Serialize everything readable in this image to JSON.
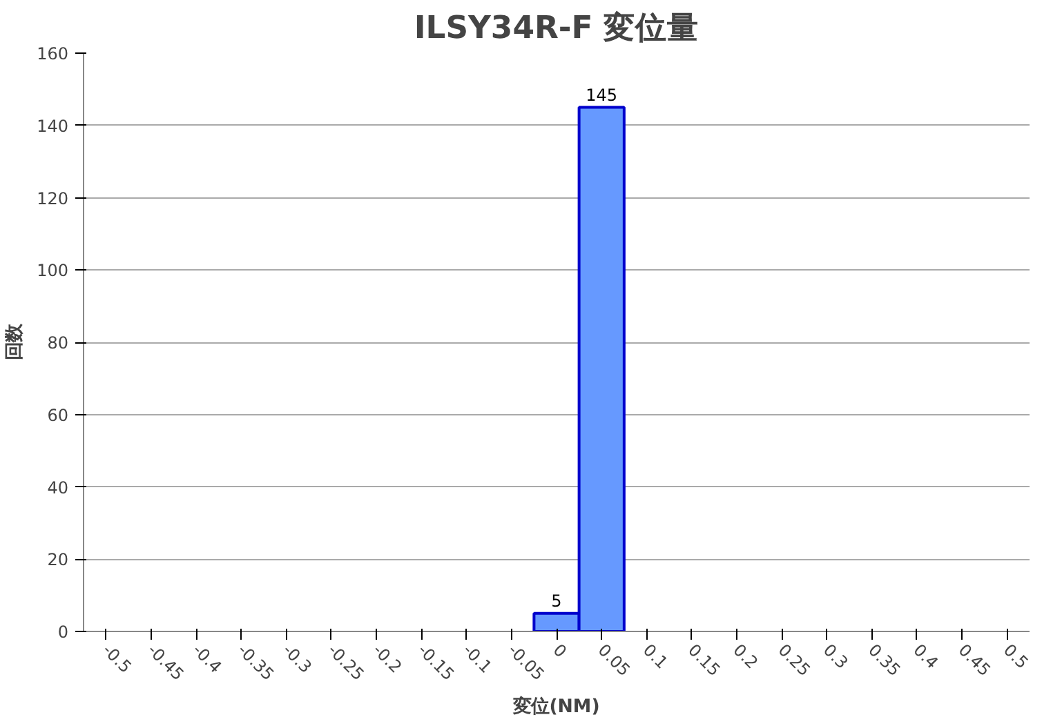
{
  "chart_data": {
    "type": "bar",
    "title": "ILSY34R-F 変位量",
    "xlabel": "変位(NM)",
    "ylabel": "回数",
    "categories": [
      "-0.5",
      "-0.45",
      "-0.4",
      "-0.35",
      "-0.3",
      "-0.25",
      "-0.2",
      "-0.15",
      "-0.1",
      "-0.05",
      "0",
      "0.05",
      "0.1",
      "0.15",
      "0.2",
      "0.25",
      "0.3",
      "0.35",
      "0.4",
      "0.45",
      "0.5"
    ],
    "values": [
      0,
      0,
      0,
      0,
      0,
      0,
      0,
      0,
      0,
      0,
      5,
      145,
      0,
      0,
      0,
      0,
      0,
      0,
      0,
      0,
      0
    ],
    "value_labels": [
      null,
      null,
      null,
      null,
      null,
      null,
      null,
      null,
      null,
      null,
      "5",
      "145",
      null,
      null,
      null,
      null,
      null,
      null,
      null,
      null,
      null
    ],
    "color": "#6699ff",
    "ylim": [
      0,
      160
    ],
    "yticks": [
      0,
      20,
      40,
      60,
      80,
      100,
      120,
      140,
      160
    ],
    "grid": "y"
  }
}
